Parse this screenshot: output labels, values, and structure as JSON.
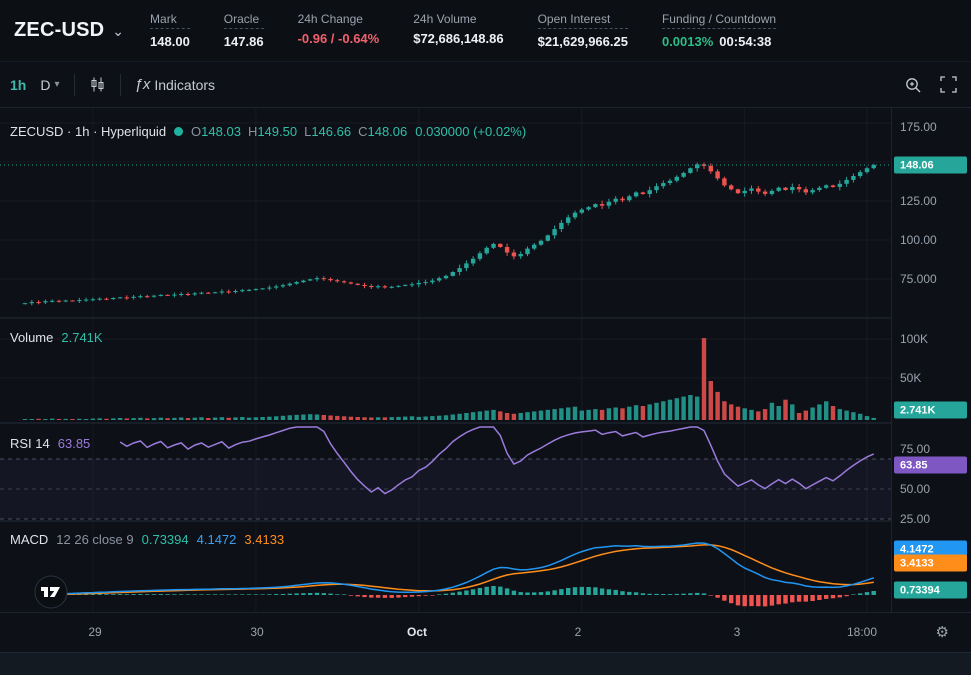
{
  "topbar": {
    "symbol": "ZEC-USD",
    "stats": [
      {
        "label": "Mark",
        "value": "148.00"
      },
      {
        "label": "Oracle",
        "value": "147.86"
      },
      {
        "label": "24h Change",
        "value": "-0.96 / -0.64%"
      },
      {
        "label": "24h Volume",
        "value": "$72,686,148.86"
      },
      {
        "label": "Open Interest",
        "value": "$21,629,966.25"
      },
      {
        "label": "Funding / Countdown",
        "funding": "0.0013%",
        "countdown": "00:54:38"
      }
    ]
  },
  "toolbar": {
    "interval": "1h",
    "timeframe": "D",
    "fx": "ƒx",
    "indicators_label": "Indicators"
  },
  "legend": {
    "title": "ZECUSD · 1h · Hyperliquid",
    "ohlc": [
      {
        "k": "O",
        "v": "148.03"
      },
      {
        "k": "H",
        "v": "149.50"
      },
      {
        "k": "L",
        "v": "146.66"
      },
      {
        "k": "C",
        "v": "148.06"
      }
    ],
    "change": "0.030000 (+0.02%)"
  },
  "volume_legend": {
    "label": "Volume",
    "value": "2.741K"
  },
  "rsi_legend": {
    "label": "RSI 14",
    "value": "63.85"
  },
  "macd_legend": {
    "label": "MACD",
    "params": "12 26 close 9",
    "v1": "0.73394",
    "v2": "4.1472",
    "v3": "3.4133"
  },
  "axes": {
    "price": [
      "175.00",
      "125.00",
      "100.00",
      "75.000"
    ],
    "volume": [
      "100K",
      "50K"
    ],
    "rsi": [
      "75.00",
      "50.00",
      "25.00"
    ],
    "time": [
      "29",
      "30",
      "Oct",
      "2",
      "3",
      "18:00"
    ]
  },
  "badges": {
    "price": "148.06",
    "volume": "2.741K",
    "rsi": "63.85",
    "macd": [
      "4.1472",
      "3.4133",
      "0.73394"
    ]
  },
  "colors": {
    "up": "#26a69a",
    "down": "#ef5350",
    "rsi": "#9b7bdc",
    "macd_line": "#2196f3",
    "macd_signal": "#ff8d1a",
    "funding_green": "#2ebd85",
    "change_red": "#f0616d"
  },
  "chart_data": {
    "type": "candlestick",
    "symbol": "ZECUSD",
    "interval": "1h",
    "panes": [
      "price",
      "volume",
      "rsi_14",
      "macd_12_26_9"
    ],
    "price_ticks": [
      175.0,
      125.0,
      100.0,
      75.0
    ],
    "volume_ticks_k": [
      100,
      50
    ],
    "rsi_ticks": [
      75,
      50,
      25
    ],
    "last_candle": {
      "o": 148.03,
      "h": 149.5,
      "l": 146.66,
      "c": 148.06
    },
    "open0": 59.0,
    "closes": [
      59.5,
      60.2,
      60.0,
      60.8,
      61.0,
      60.6,
      61.2,
      61.0,
      61.5,
      61.8,
      62.0,
      62.4,
      62.1,
      62.8,
      63.2,
      63.0,
      63.6,
      64.0,
      63.7,
      64.3,
      64.8,
      64.5,
      65.0,
      65.4,
      65.1,
      65.8,
      66.2,
      66.0,
      66.5,
      67.0,
      66.7,
      67.3,
      67.8,
      68.0,
      68.5,
      69.0,
      69.5,
      70.2,
      71.0,
      72.0,
      73.0,
      74.0,
      74.8,
      75.5,
      75.0,
      74.2,
      73.5,
      72.8,
      72.0,
      71.2,
      70.5,
      69.8,
      70.3,
      69.6,
      70.0,
      70.6,
      71.2,
      71.6,
      72.5,
      73.0,
      74.0,
      75.5,
      77.0,
      79.5,
      82.0,
      85.0,
      88.0,
      91.5,
      95.0,
      97.5,
      95.5,
      92.0,
      89.5,
      91.0,
      94.5,
      97.0,
      99.5,
      103.0,
      107.0,
      111.0,
      114.5,
      117.5,
      119.5,
      121.0,
      123.0,
      122.0,
      124.5,
      126.5,
      125.5,
      128.0,
      130.5,
      129.5,
      132.0,
      134.5,
      136.5,
      138.0,
      140.5,
      143.0,
      146.0,
      148.5,
      147.5,
      144.0,
      139.5,
      135.0,
      132.5,
      130.0,
      131.5,
      133.0,
      131.0,
      129.5,
      131.5,
      133.5,
      132.0,
      134.0,
      132.5,
      130.5,
      132.0,
      133.5,
      135.0,
      134.0,
      136.0,
      138.5,
      141.0,
      143.5,
      146.0,
      148.06
    ],
    "volumes_k": [
      1.2,
      0.9,
      1.5,
      1.1,
      1.8,
      1.0,
      1.4,
      1.2,
      1.6,
      1.3,
      1.8,
      2.2,
      1.5,
      2.0,
      2.6,
      1.9,
      2.4,
      2.8,
      2.1,
      2.5,
      3.0,
      2.3,
      2.7,
      3.2,
      2.4,
      2.9,
      3.4,
      2.6,
      3.1,
      3.6,
      2.8,
      3.3,
      3.8,
      3.0,
      3.4,
      3.8,
      4.2,
      4.8,
      5.4,
      6.0,
      6.6,
      7.0,
      7.4,
      7.0,
      6.4,
      5.8,
      5.2,
      4.7,
      4.2,
      3.8,
      3.5,
      3.2,
      3.5,
      3.3,
      3.7,
      4.0,
      4.4,
      4.7,
      4.0,
      4.5,
      5.0,
      5.5,
      6.0,
      7.0,
      8.0,
      9.0,
      10.0,
      11.0,
      12.0,
      13.0,
      11.0,
      9.0,
      8.0,
      9.0,
      10.0,
      11.0,
      12.0,
      13.0,
      14.0,
      15.0,
      16.0,
      17.0,
      12,
      13,
      14,
      13,
      15,
      16,
      15,
      17,
      19,
      18,
      20,
      22,
      24,
      26,
      28,
      30,
      32,
      30,
      105,
      50,
      36,
      24,
      20,
      17,
      15,
      13,
      11,
      14,
      22,
      18,
      26,
      20,
      9,
      12,
      16,
      20,
      24,
      18,
      14,
      12,
      10,
      8,
      5,
      2.741
    ],
    "x_tick_indices": [
      10,
      34,
      58,
      82,
      106,
      124
    ],
    "rsi_band": [
      70,
      30
    ],
    "current_price": 148.06
  }
}
